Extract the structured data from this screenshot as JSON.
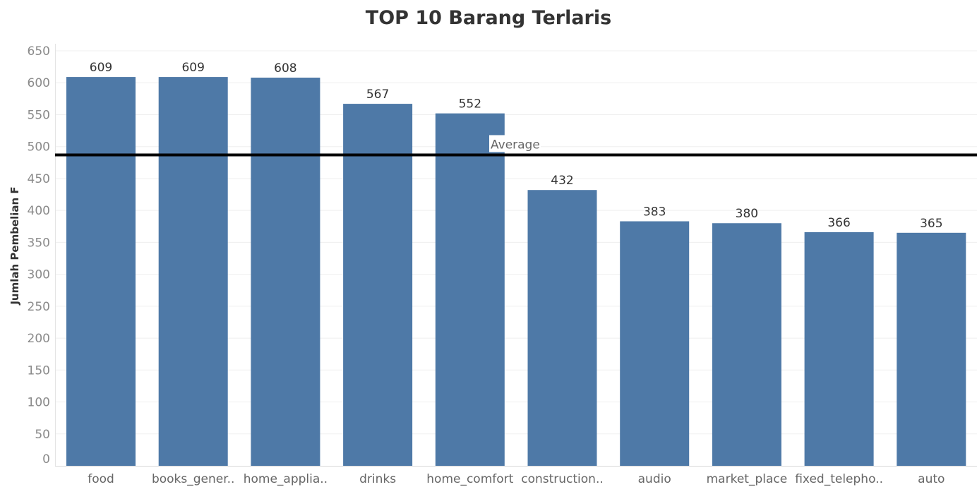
{
  "chart_data": {
    "type": "bar",
    "title": "TOP 10 Barang Terlaris",
    "xlabel": "",
    "ylabel": "Jumlah Pembelian F",
    "categories": [
      "food",
      "books_gener..",
      "home_applia..",
      "drinks",
      "home_comfort",
      "construction..",
      "audio",
      "market_place",
      "fixed_telepho..",
      "auto"
    ],
    "values": [
      609,
      609,
      608,
      567,
      552,
      432,
      383,
      380,
      366,
      365
    ],
    "ylim": [
      0,
      650
    ],
    "yticks": [
      0,
      50,
      100,
      150,
      200,
      250,
      300,
      350,
      400,
      450,
      500,
      550,
      600,
      650
    ],
    "reference_line": {
      "label": "Average",
      "value": 487
    },
    "grid": true,
    "legend": "none",
    "colors": {
      "bar": "#4e79a7",
      "reference_line": "#000000",
      "grid": "#efefef"
    }
  }
}
